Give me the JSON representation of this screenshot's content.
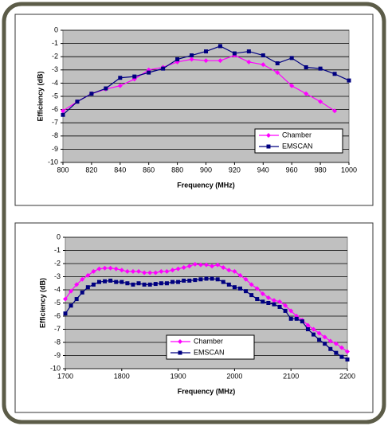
{
  "chart_data": [
    {
      "type": "line",
      "xlabel": "Frequency (MHz)",
      "ylabel": "Efficiency (dB)",
      "xlim": [
        800,
        1000
      ],
      "xticks": [
        800,
        820,
        840,
        860,
        880,
        900,
        920,
        940,
        960,
        980,
        1000
      ],
      "ylim": [
        -10,
        0
      ],
      "yticks": [
        0,
        -1,
        -2,
        -3,
        -4,
        -5,
        -6,
        -7,
        -8,
        -9,
        -10
      ],
      "grid": true,
      "legend": "lower right",
      "series": [
        {
          "name": "Chamber",
          "color": "#ff00ff",
          "marker": "diamond",
          "x": [
            800,
            810,
            820,
            830,
            840,
            850,
            860,
            870,
            880,
            890,
            900,
            910,
            920,
            930,
            940,
            950,
            960,
            970,
            980,
            990
          ],
          "values": [
            -6.1,
            -5.4,
            -4.8,
            -4.45,
            -4.2,
            -3.7,
            -3.0,
            -2.8,
            -2.4,
            -2.2,
            -2.3,
            -2.3,
            -1.9,
            -2.4,
            -2.6,
            -3.2,
            -4.2,
            -4.8,
            -5.4,
            -6.1
          ]
        },
        {
          "name": "EMSCAN",
          "color": "#000080",
          "marker": "square",
          "x": [
            800,
            810,
            820,
            830,
            840,
            850,
            860,
            870,
            880,
            890,
            900,
            910,
            920,
            930,
            940,
            950,
            960,
            970,
            980,
            990,
            1000
          ],
          "values": [
            -6.4,
            -5.4,
            -4.8,
            -4.4,
            -3.6,
            -3.5,
            -3.2,
            -2.9,
            -2.2,
            -1.9,
            -1.6,
            -1.2,
            -1.75,
            -1.6,
            -1.9,
            -2.5,
            -2.1,
            -2.8,
            -2.9,
            -3.3,
            -3.8
          ]
        }
      ]
    },
    {
      "type": "line",
      "xlabel": "Frequency (MHz)",
      "ylabel": "Efficiency (dB)",
      "xlim": [
        1700,
        2200
      ],
      "xticks": [
        1700,
        1800,
        1900,
        2000,
        2100,
        2200
      ],
      "ylim": [
        -10,
        0
      ],
      "yticks": [
        0,
        -1,
        -2,
        -3,
        -4,
        -5,
        -6,
        -7,
        -8,
        -9,
        -10
      ],
      "grid": true,
      "legend": "lower center",
      "series": [
        {
          "name": "Chamber",
          "color": "#ff00ff",
          "marker": "diamond",
          "x": [
            1700,
            1710,
            1720,
            1730,
            1740,
            1750,
            1760,
            1770,
            1780,
            1790,
            1800,
            1810,
            1820,
            1830,
            1840,
            1850,
            1860,
            1870,
            1880,
            1890,
            1900,
            1910,
            1920,
            1930,
            1940,
            1950,
            1960,
            1970,
            1980,
            1990,
            2000,
            2010,
            2020,
            2030,
            2040,
            2050,
            2060,
            2070,
            2080,
            2090,
            2100,
            2110,
            2120,
            2130,
            2140,
            2150,
            2160,
            2170,
            2180,
            2190,
            2200
          ],
          "values": [
            -4.7,
            -4.1,
            -3.6,
            -3.2,
            -2.9,
            -2.6,
            -2.4,
            -2.35,
            -2.35,
            -2.4,
            -2.5,
            -2.6,
            -2.6,
            -2.6,
            -2.7,
            -2.7,
            -2.7,
            -2.6,
            -2.6,
            -2.5,
            -2.4,
            -2.3,
            -2.2,
            -2.05,
            -2.1,
            -2.1,
            -2.2,
            -2.1,
            -2.3,
            -2.5,
            -2.6,
            -2.9,
            -3.2,
            -3.6,
            -3.9,
            -4.3,
            -4.6,
            -4.8,
            -4.9,
            -5.2,
            -5.6,
            -6.0,
            -6.3,
            -6.7,
            -7.0,
            -7.3,
            -7.6,
            -7.9,
            -8.1,
            -8.4,
            -8.7
          ]
        },
        {
          "name": "EMSCAN",
          "color": "#000080",
          "marker": "square",
          "x": [
            1700,
            1710,
            1720,
            1730,
            1740,
            1750,
            1760,
            1770,
            1780,
            1790,
            1800,
            1810,
            1820,
            1830,
            1840,
            1850,
            1860,
            1870,
            1880,
            1890,
            1900,
            1910,
            1920,
            1930,
            1940,
            1950,
            1960,
            1970,
            1980,
            1990,
            2000,
            2010,
            2020,
            2030,
            2040,
            2050,
            2060,
            2070,
            2080,
            2090,
            2100,
            2110,
            2120,
            2130,
            2140,
            2150,
            2160,
            2170,
            2180,
            2190,
            2200
          ],
          "values": [
            -5.8,
            -5.2,
            -4.7,
            -4.2,
            -3.8,
            -3.6,
            -3.4,
            -3.35,
            -3.3,
            -3.4,
            -3.4,
            -3.5,
            -3.6,
            -3.5,
            -3.6,
            -3.6,
            -3.55,
            -3.5,
            -3.5,
            -3.4,
            -3.4,
            -3.3,
            -3.3,
            -3.25,
            -3.2,
            -3.15,
            -3.15,
            -3.2,
            -3.4,
            -3.6,
            -3.8,
            -3.9,
            -4.1,
            -4.4,
            -4.7,
            -4.9,
            -5.0,
            -5.1,
            -5.3,
            -5.6,
            -6.2,
            -6.2,
            -6.4,
            -7.0,
            -7.4,
            -7.8,
            -8.1,
            -8.5,
            -8.8,
            -9.1,
            -9.3
          ]
        }
      ]
    }
  ]
}
